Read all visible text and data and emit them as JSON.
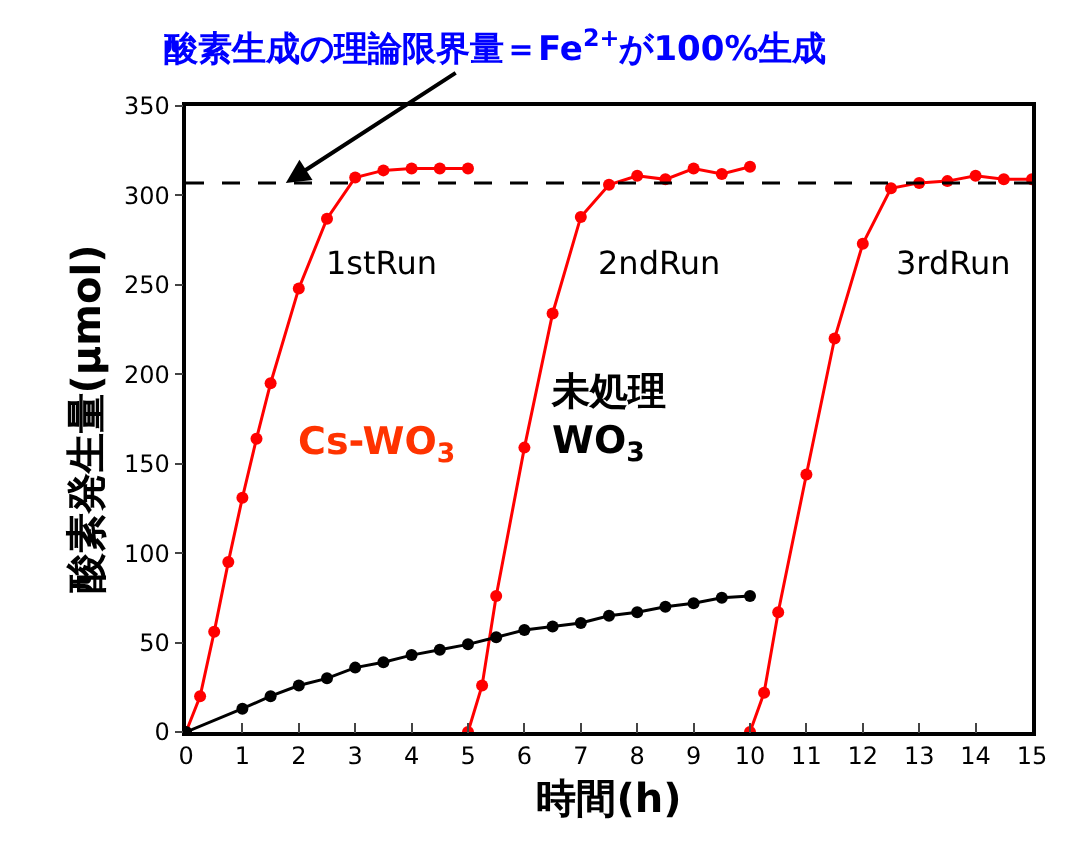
{
  "chart_data": {
    "type": "line",
    "xlabel": "時間(h)",
    "ylabel": "酸素発生量(μmol)",
    "xlim": [
      0,
      15
    ],
    "xticks": [
      0,
      1,
      2,
      3,
      4,
      5,
      6,
      7,
      8,
      9,
      10,
      11,
      12,
      13,
      14,
      15
    ],
    "ylim": [
      0,
      350
    ],
    "yticks": [
      0,
      50,
      100,
      150,
      200,
      250,
      300,
      350
    ],
    "legend": false,
    "marker": "circle",
    "line_style": "solid",
    "series": [
      {
        "name": "Cs-WO$_{3}$",
        "color": "#ff0000",
        "x": [
          0,
          0.25,
          0.5,
          0.75,
          1,
          1.25,
          1.5,
          2,
          2.5,
          3,
          3.5,
          4,
          4.5,
          5
        ],
        "values": [
          0,
          20,
          56,
          95,
          131,
          164,
          195,
          248,
          287,
          310,
          314,
          315,
          315,
          315
        ]
      },
      {
        "color": "#ff0000",
        "x": [
          5,
          5.25,
          5.5,
          6,
          6.5,
          7,
          7.5,
          8,
          8.5,
          9,
          9.5,
          10
        ],
        "values": [
          0,
          26,
          76,
          159,
          234,
          288,
          306,
          311,
          309,
          315,
          312,
          316
        ]
      },
      {
        "color": "#ff0000",
        "x": [
          10,
          10.25,
          10.5,
          11,
          11.5,
          12,
          12.5,
          13,
          13.5,
          14,
          14.5,
          15
        ],
        "values": [
          0,
          22,
          67,
          144,
          220,
          273,
          304,
          307,
          308,
          311,
          309,
          309
        ]
      },
      {
        "name": "未処理\nWO$_{3}$",
        "color": "#000000",
        "x": [
          0,
          1,
          1.5,
          2,
          2.5,
          3,
          3.5,
          4,
          4.5,
          5,
          5.5,
          6,
          6.5,
          7,
          7.5,
          8,
          8.5,
          9,
          9.5,
          10
        ],
        "values": [
          0,
          13,
          20,
          26,
          30,
          36,
          39,
          43,
          46,
          49,
          53,
          57,
          59,
          61,
          65,
          67,
          70,
          72,
          75,
          76
        ]
      }
    ],
    "ref_lines": [
      {
        "axis": "y",
        "value": 307,
        "color": "#000000",
        "line_style": "dashed"
      }
    ],
    "annotations": [
      {
        "text": "酸素生成の理論限界量＝Fe$^{2+}$が100%生成",
        "x": 1.77,
        "y": 307
      },
      "1stRun",
      "2ndRun",
      "3rdRun"
    ]
  }
}
